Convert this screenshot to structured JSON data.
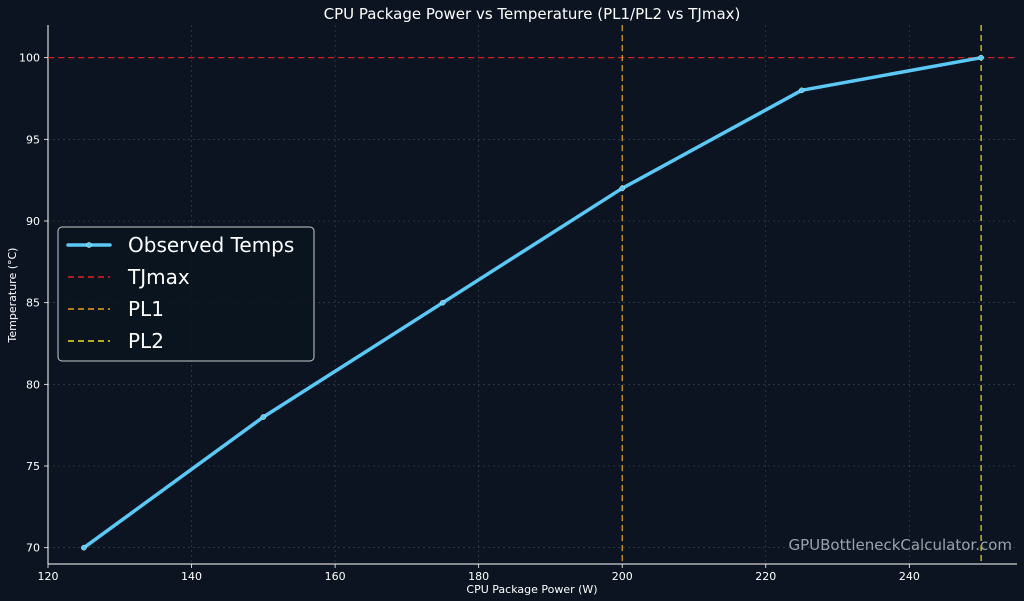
{
  "chart_data": {
    "type": "line",
    "title": "CPU Package Power vs Temperature (PL1/PL2 vs TJmax)",
    "xlabel": "CPU Package Power (W)",
    "ylabel": "Temperature (°C)",
    "xlim": [
      120,
      255
    ],
    "ylim": [
      69,
      102
    ],
    "xticks": [
      120,
      140,
      160,
      180,
      200,
      220,
      240
    ],
    "yticks": [
      70,
      75,
      80,
      85,
      90,
      95,
      100
    ],
    "grid": true,
    "legend_position": "center-left",
    "series": [
      {
        "name": "Observed Temps",
        "x": [
          125,
          150,
          175,
          200,
          225,
          250
        ],
        "y": [
          70,
          78,
          85,
          92,
          98,
          100
        ],
        "color": "#5bc8f5",
        "style": "solid",
        "marker": "circle"
      }
    ],
    "reference_lines": [
      {
        "name": "TJmax",
        "orientation": "horizontal",
        "value": 100,
        "color": "#e02020",
        "style": "dashed"
      },
      {
        "name": "PL1",
        "orientation": "vertical",
        "value": 200,
        "color": "#f0a020",
        "style": "dashed"
      },
      {
        "name": "PL2",
        "orientation": "vertical",
        "value": 250,
        "color": "#f0e020",
        "style": "dashed"
      }
    ],
    "watermark": "GPUBottleneckCalculator.com"
  }
}
